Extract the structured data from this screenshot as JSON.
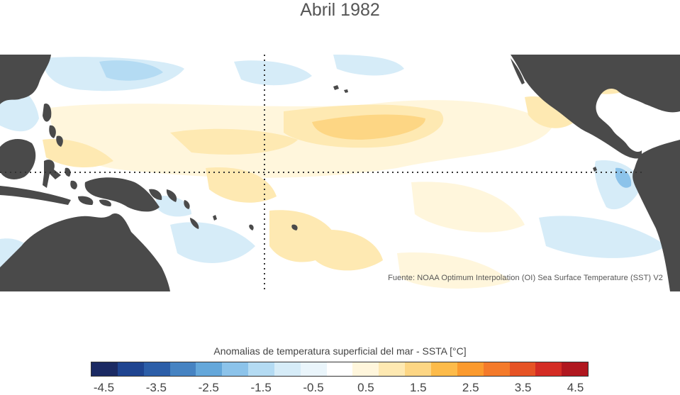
{
  "title": "Abril 1982",
  "source": "Fuente: NOAA Optimum Interpolation (OI) Sea Surface Temperature (SST) V2",
  "colorbar": {
    "label": "Anomalias de temperatura superficial del mar - SSTA  [°C]",
    "colors": [
      "#1b2a63",
      "#1f4490",
      "#2c5ea8",
      "#4683c2",
      "#64a7da",
      "#8cc3ea",
      "#b4dbf3",
      "#d6ecf8",
      "#eaf5fb",
      "#ffffff",
      "#fff6dc",
      "#fee9b2",
      "#fdd684",
      "#fdbb4a",
      "#fb9a2e",
      "#f47a2a",
      "#e65325",
      "#d42c24",
      "#b0171f"
    ],
    "tick_labels": [
      "-4.5",
      "-3.5",
      "-2.5",
      "-1.5",
      "-0.5",
      "0.5",
      "1.5",
      "2.5",
      "3.5",
      "4.5"
    ]
  },
  "map": {
    "land_color": "#4a4a4a",
    "cool_color": "#d6ecf8",
    "warm_color": "#fee9b2",
    "strong_warm_color": "#fdd684",
    "reference_lines": [
      "equator",
      "180° meridian"
    ]
  }
}
